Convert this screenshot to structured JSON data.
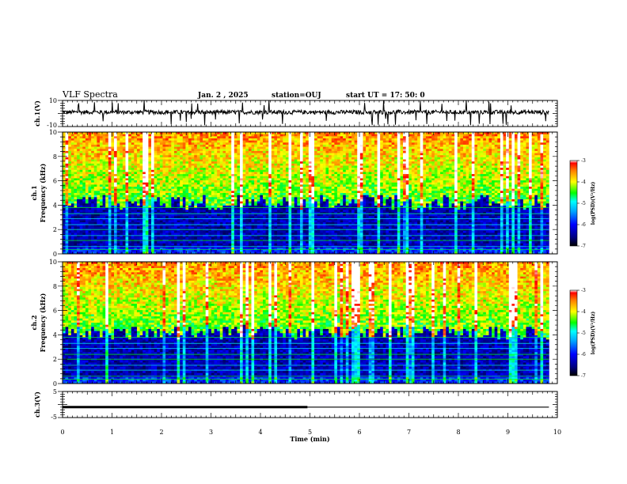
{
  "header": {
    "title": "VLF Spectra",
    "date": "Jan. 2 , 2025",
    "station": "station=OUJ",
    "start_ut": "start UT = 17: 50: 0"
  },
  "chart_data": [
    {
      "type": "line",
      "name": "ch1_waveform",
      "ylabel": "ch.1(V)",
      "ylim": [
        -10,
        10
      ],
      "ytick_labels": [
        "10",
        "-10"
      ],
      "xlim": [
        0,
        10
      ],
      "baseline_approx": 1.0,
      "notes": "noisy waveform with impulsive spikes"
    },
    {
      "type": "heatmap",
      "name": "ch1_spectrogram",
      "ylabel": "ch.1 Frequency (kHz)",
      "ylabel_parts": [
        "ch.1",
        "Frequency (kHz)"
      ],
      "ylim": [
        0,
        10
      ],
      "ytick_labels": [
        "0",
        "2",
        "4",
        "6",
        "8",
        "10"
      ],
      "xlim": [
        0,
        10
      ],
      "data_end_min": 9.83,
      "colorbar": {
        "label": "log(PSD)(V²/Hz)",
        "range": [
          -7,
          -3
        ],
        "tick_labels": [
          "-3",
          "-4",
          "-5",
          "-6",
          "-7"
        ]
      }
    },
    {
      "type": "heatmap",
      "name": "ch2_spectrogram",
      "ylabel": "ch.2 Frequency (kHz)",
      "ylabel_parts": [
        "ch.2",
        "Frequency (kHz)"
      ],
      "ylim": [
        0,
        10
      ],
      "ytick_labels": [
        "0",
        "2",
        "4",
        "6",
        "8",
        "10"
      ],
      "xlim": [
        0,
        10
      ],
      "data_end_min": 9.83,
      "colorbar": {
        "label": "log(PSD)(V²/Hz)",
        "range": [
          -7,
          -3
        ],
        "tick_labels": [
          "-3",
          "-4",
          "-5",
          "-6",
          "-7"
        ]
      }
    },
    {
      "type": "line",
      "name": "ch3_signal",
      "ylabel": "ch.3(V)",
      "ylim": [
        -5,
        5
      ],
      "ytick_labels": [
        "5",
        "-5"
      ],
      "xlim": [
        0,
        10
      ],
      "xlabel": "Time (min)",
      "xtick_labels": [
        "0",
        "1",
        "2",
        "3",
        "4",
        "5",
        "6",
        "7",
        "8",
        "9",
        "10"
      ],
      "segments": [
        {
          "x": [
            0,
            4.95
          ],
          "y": -1.0,
          "style": "thick"
        },
        {
          "x": [
            4.95,
            9.83
          ],
          "y": -1.0,
          "style": "thin"
        }
      ]
    }
  ]
}
